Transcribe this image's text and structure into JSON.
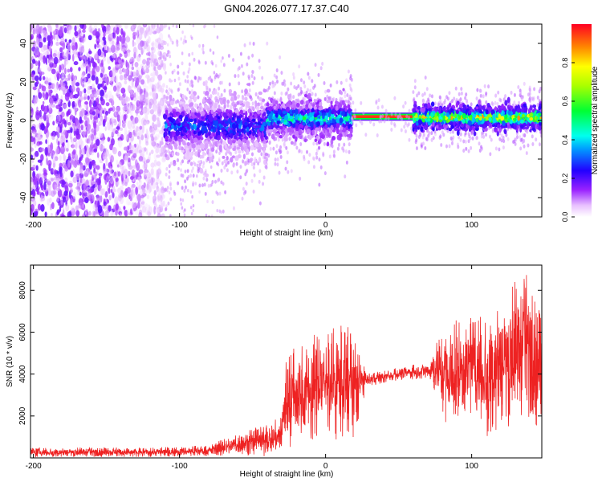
{
  "figure_title": "GN04.2026.077.17.37.C40",
  "chart_data": [
    {
      "type": "heatmap",
      "title": "GN04.2026.077.17.37.C40",
      "xlabel": "Height of straight line (km)",
      "ylabel": "Frequency (Hz)",
      "xlim": [
        -202,
        148
      ],
      "ylim": [
        -50,
        50
      ],
      "xticks": [
        -200,
        -100,
        0,
        100
      ],
      "yticks": [
        -40,
        -20,
        0,
        20,
        40
      ],
      "colorbar": {
        "label": "Normalized spectral amplitude",
        "range": [
          0,
          1
        ],
        "ticks": [
          0.0,
          0.2,
          0.4,
          0.6,
          0.8
        ],
        "colormap": "rainbow (magenta - violet - blue - cyan - green - yellow - red)"
      },
      "segments": [
        {
          "x_range": [
            -202,
            -110
          ],
          "freq_center": 0,
          "freq_spread": 50,
          "amplitude": 0.12,
          "description": "broadband noise"
        },
        {
          "x_range": [
            -110,
            -40
          ],
          "freq_center": -3,
          "freq_spread": 8,
          "amplitude": 0.3,
          "description": "noisy signal"
        },
        {
          "x_range": [
            -40,
            18
          ],
          "freq_center": 1,
          "freq_spread": 5,
          "amplitude": 0.45,
          "description": "emerging signal"
        },
        {
          "x_range": [
            18,
            60
          ],
          "freq_center": 2,
          "freq_spread": 1.5,
          "amplitude": 0.95,
          "description": "strong stable tone"
        },
        {
          "x_range": [
            60,
            148
          ],
          "freq_center": 1.5,
          "freq_spread": 3,
          "amplitude": 0.75,
          "description": "strong tone with some scatter"
        }
      ]
    },
    {
      "type": "line",
      "xlabel": "Height of straight line (km)",
      "ylabel": "SNR (10 * v/v)",
      "xlim": [
        -202,
        148
      ],
      "ylim": [
        0,
        9200
      ],
      "xticks": [
        -200,
        -100,
        0,
        100
      ],
      "yticks": [
        2000,
        4000,
        6000,
        8000
      ],
      "color": "#ee2222",
      "series": [
        {
          "name": "SNR",
          "envelope": [
            {
              "x": -202,
              "low": 50,
              "high": 500
            },
            {
              "x": -120,
              "low": 50,
              "high": 500
            },
            {
              "x": -80,
              "low": 80,
              "high": 600
            },
            {
              "x": -60,
              "low": 100,
              "high": 1200
            },
            {
              "x": -40,
              "low": 80,
              "high": 1600
            },
            {
              "x": -30,
              "low": 200,
              "high": 2000
            },
            {
              "x": -28,
              "low": 300,
              "high": 5200
            },
            {
              "x": -15,
              "low": 800,
              "high": 5500
            },
            {
              "x": 0,
              "low": 1000,
              "high": 6300
            },
            {
              "x": 10,
              "low": 800,
              "high": 6500
            },
            {
              "x": 20,
              "low": 900,
              "high": 6000
            },
            {
              "x": 28,
              "low": 3400,
              "high": 4000
            },
            {
              "x": 50,
              "low": 3700,
              "high": 4300
            },
            {
              "x": 70,
              "low": 3800,
              "high": 4600
            },
            {
              "x": 78,
              "low": 2500,
              "high": 6200
            },
            {
              "x": 85,
              "low": 1100,
              "high": 6500
            },
            {
              "x": 100,
              "low": 2200,
              "high": 6700
            },
            {
              "x": 110,
              "low": 1000,
              "high": 7300
            },
            {
              "x": 125,
              "low": 1500,
              "high": 8200
            },
            {
              "x": 138,
              "low": 2000,
              "high": 9000
            },
            {
              "x": 148,
              "low": 1200,
              "high": 7000
            }
          ]
        }
      ]
    }
  ]
}
